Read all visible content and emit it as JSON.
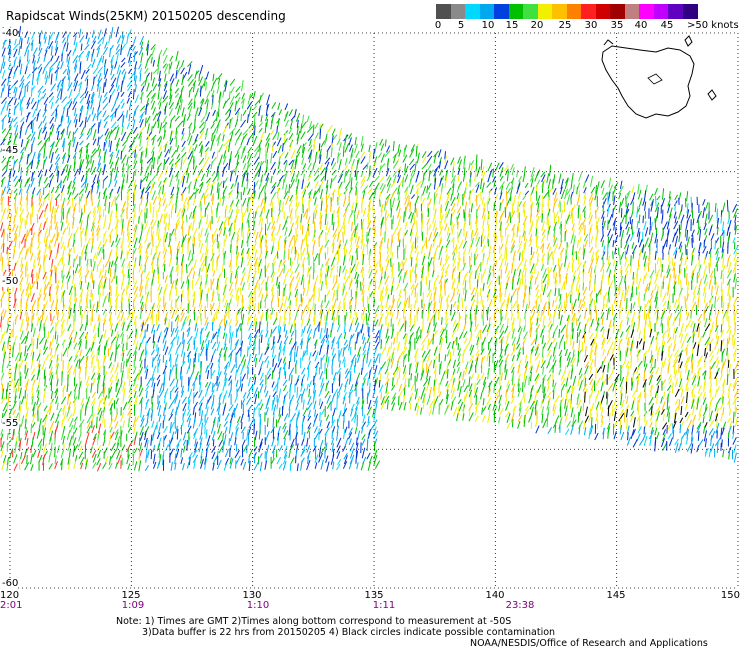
{
  "title": "Rapidscat Winds(25KM) 20150205 descending",
  "colorbar": {
    "labels": [
      "0",
      "5",
      "10",
      "15",
      "20",
      "25",
      "30",
      "35",
      "40",
      "45",
      ">50 knots"
    ],
    "colors": [
      "#505050",
      "#8a8a8a",
      "#00d8ff",
      "#00a8f0",
      "#0040e0",
      "#00c000",
      "#40e040",
      "#f0f000",
      "#ffc000",
      "#ff8000",
      "#ff2020",
      "#d00000",
      "#a00000",
      "#c08080",
      "#ff00ff",
      "#c000ff",
      "#6000c0",
      "#300080"
    ]
  },
  "axes": {
    "lat_labels": [
      "-40",
      "-45",
      "-50",
      "-55",
      "-60"
    ],
    "lon_labels": [
      "120",
      "125",
      "130",
      "135",
      "140",
      "145",
      "150"
    ]
  },
  "times": [
    {
      "lon": "120",
      "label": "2:01"
    },
    {
      "lon": "125",
      "label": "1:09"
    },
    {
      "lon": "130",
      "label": "1:10"
    },
    {
      "lon": "135",
      "label": "1:11"
    },
    {
      "lon": "140",
      "label": "23:38"
    }
  ],
  "notes": [
    "Note: 1) Times are GMT 2)Times along bottom correspond to measurement at -50S",
    "3)Data buffer is 22 hrs from 20150205 4) Black circles indicate possible contamination",
    "NOAA/NESDIS/Office of Research and Applications"
  ],
  "map": {
    "lon_range": [
      120,
      150
    ],
    "lat_range": [
      -60,
      -40
    ],
    "region": "Tasmania (inset coastline)"
  }
}
